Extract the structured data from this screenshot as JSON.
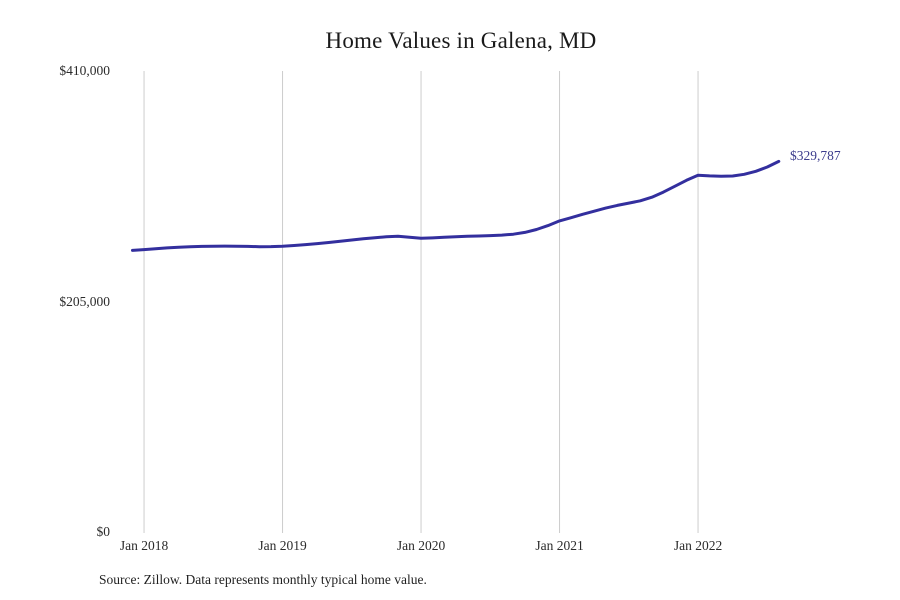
{
  "chart": {
    "title": "Home Values in Galena, MD",
    "source": "Source: Zillow. Data represents monthly typical home value.",
    "latest_value_label": "$329,787",
    "y_ticks": [
      "$0",
      "$205,000",
      "$410,000"
    ],
    "x_ticks": [
      "Jan 2018",
      "Jan 2019",
      "Jan 2020",
      "Jan 2021",
      "Jan 2022"
    ],
    "colors": {
      "line": "#332f9e",
      "annotation": "#3c3c8c",
      "gridline": "#cccccc",
      "text": "#2b2b2b",
      "title": "#1a1a1a"
    }
  },
  "chart_data": {
    "type": "line",
    "title": "Home Values in Galena, MD",
    "xlabel": "",
    "ylabel": "",
    "ylim": [
      0,
      410000
    ],
    "grid": "vertical-only",
    "legend": "none",
    "annotation": {
      "text": "$329,787",
      "at": "Aug 2022"
    },
    "x_tick_labels": [
      "Jan 2018",
      "Jan 2019",
      "Jan 2020",
      "Jan 2021",
      "Jan 2022"
    ],
    "y_tick_labels": [
      "$0",
      "$205,000",
      "$410,000"
    ],
    "x": [
      "Dec 2017",
      "Jan 2018",
      "Feb 2018",
      "Mar 2018",
      "Apr 2018",
      "May 2018",
      "Jun 2018",
      "Jul 2018",
      "Aug 2018",
      "Sep 2018",
      "Oct 2018",
      "Nov 2018",
      "Dec 2018",
      "Jan 2019",
      "Feb 2019",
      "Mar 2019",
      "Apr 2019",
      "May 2019",
      "Jun 2019",
      "Jul 2019",
      "Aug 2019",
      "Sep 2019",
      "Oct 2019",
      "Nov 2019",
      "Dec 2019",
      "Jan 2020",
      "Feb 2020",
      "Mar 2020",
      "Apr 2020",
      "May 2020",
      "Jun 2020",
      "Jul 2020",
      "Aug 2020",
      "Sep 2020",
      "Oct 2020",
      "Nov 2020",
      "Dec 2020",
      "Jan 2021",
      "Feb 2021",
      "Mar 2021",
      "Apr 2021",
      "May 2021",
      "Jun 2021",
      "Jul 2021",
      "Aug 2021",
      "Sep 2021",
      "Oct 2021",
      "Nov 2021",
      "Dec 2021",
      "Jan 2022",
      "Feb 2022",
      "Mar 2022",
      "Apr 2022",
      "May 2022",
      "Jun 2022",
      "Jul 2022",
      "Aug 2022"
    ],
    "values": [
      250800,
      251500,
      252300,
      253000,
      253600,
      254000,
      254300,
      254500,
      254600,
      254500,
      254300,
      254100,
      254200,
      254500,
      255100,
      255900,
      256800,
      257800,
      258900,
      260000,
      261100,
      262100,
      262900,
      263300,
      262400,
      261500,
      261900,
      262400,
      262900,
      263300,
      263600,
      263900,
      264400,
      265200,
      266800,
      269300,
      272800,
      277000,
      279800,
      282800,
      285600,
      288300,
      290700,
      292800,
      294800,
      298000,
      302500,
      307800,
      313000,
      317500,
      316900,
      316600,
      316800,
      318300,
      321000,
      324800,
      329787
    ],
    "gridline_month_indices": [
      1,
      13,
      25,
      37,
      49
    ]
  }
}
